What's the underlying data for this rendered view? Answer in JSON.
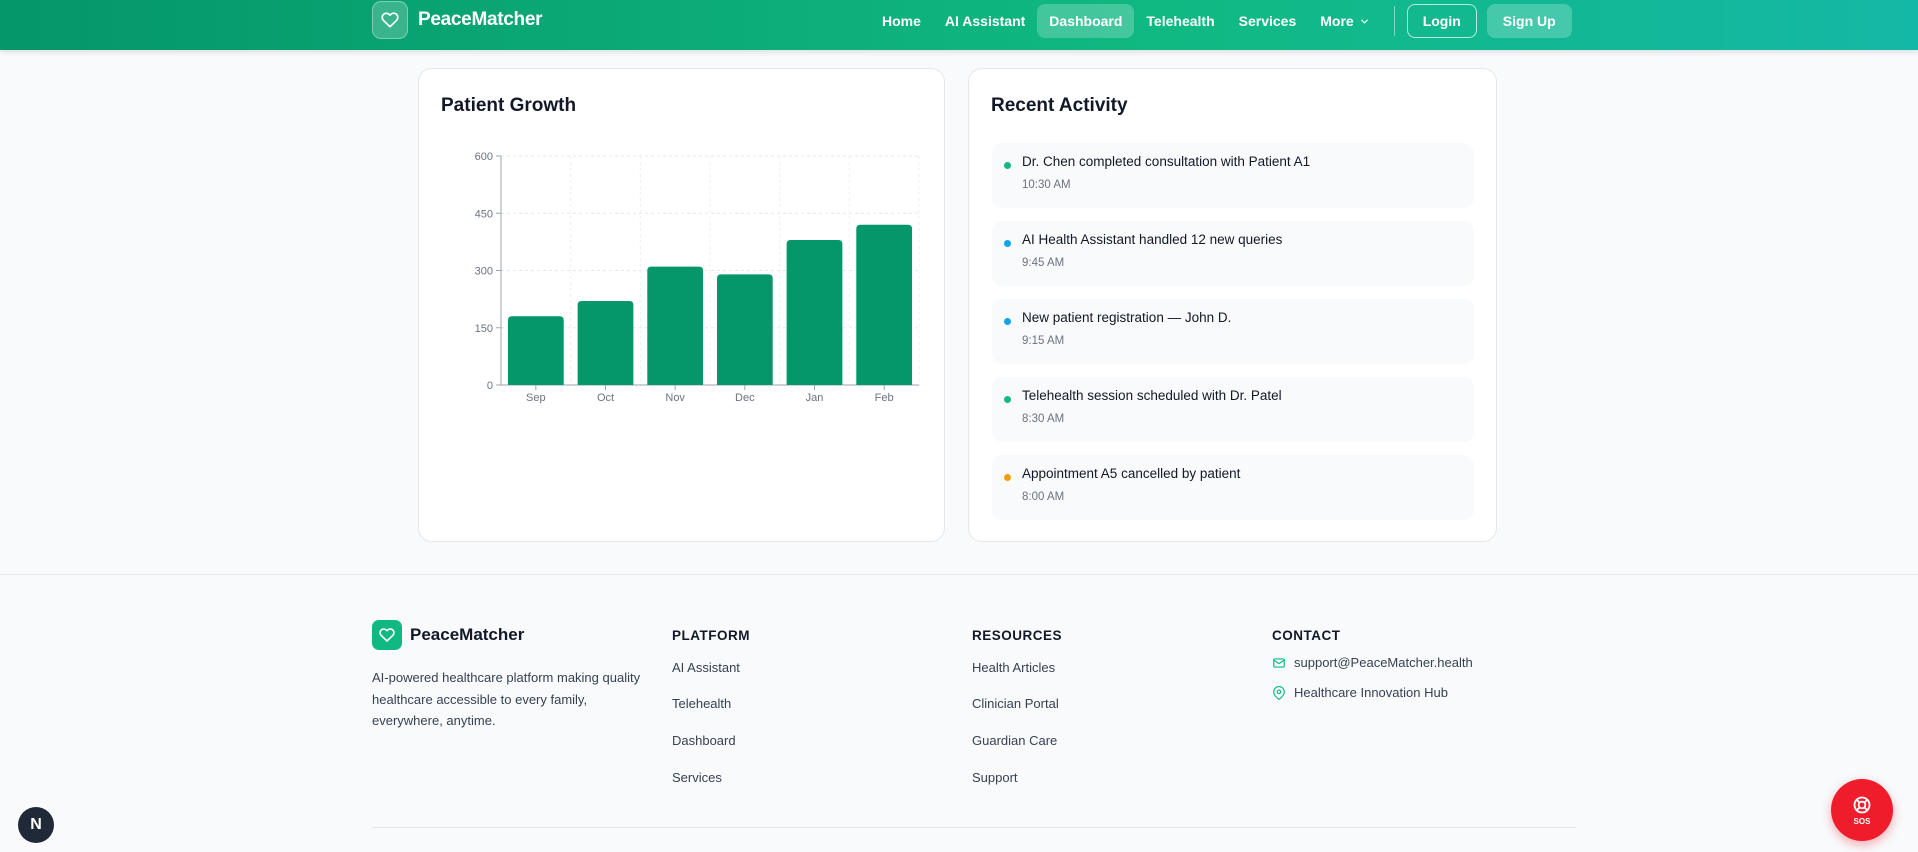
{
  "nav": {
    "brand": "PeaceMatcher",
    "links": [
      "Home",
      "AI Assistant",
      "Dashboard",
      "Telehealth",
      "Services"
    ],
    "active": "Dashboard",
    "more_label": "More",
    "login_label": "Login",
    "signup_label": "Sign Up",
    "icons": {
      "logo": "heart-icon",
      "more": "chevron-down-icon"
    }
  },
  "growth_card": {
    "title": "Patient Growth"
  },
  "chart_data": {
    "type": "bar",
    "title": "Patient Growth",
    "categories": [
      "Sep",
      "Oct",
      "Nov",
      "Dec",
      "Jan",
      "Feb"
    ],
    "values": [
      180,
      220,
      310,
      290,
      380,
      420
    ],
    "yticks": [
      "0",
      "150",
      "300",
      "450",
      "600"
    ],
    "ylim": [
      0,
      600
    ],
    "grid": true,
    "color": "#059669"
  },
  "activity_card": {
    "title": "Recent Activity",
    "items": [
      {
        "text": "Dr. Chen completed consultation with Patient A1",
        "time": "10:30 AM",
        "color": "#10b981"
      },
      {
        "text": "AI Health Assistant handled 12 new queries",
        "time": "9:45 AM",
        "color": "#0ea5e9"
      },
      {
        "text": "New patient registration — John D.",
        "time": "9:15 AM",
        "color": "#0ea5e9"
      },
      {
        "text": "Telehealth session scheduled with Dr. Patel",
        "time": "8:30 AM",
        "color": "#10b981"
      },
      {
        "text": "Appointment A5 cancelled by patient",
        "time": "8:00 AM",
        "color": "#f59e0b"
      }
    ]
  },
  "footer": {
    "brand": "PeaceMatcher",
    "description": "AI-powered healthcare platform making quality healthcare accessible to every family, everywhere, anytime.",
    "platform": {
      "heading": "PLATFORM",
      "links": [
        "AI Assistant",
        "Telehealth",
        "Dashboard",
        "Services"
      ]
    },
    "resources": {
      "heading": "RESOURCES",
      "links": [
        "Health Articles",
        "Clinician Portal",
        "Guardian Care",
        "Support"
      ]
    },
    "contact": {
      "heading": "CONTACT",
      "email": "support@PeaceMatcher.health",
      "location": "Healthcare Innovation Hub",
      "icons": {
        "email": "mail-icon",
        "location": "map-pin-icon"
      }
    }
  },
  "floating": {
    "dev_badge": "N",
    "sos_label": "SOS",
    "sos_icon": "lifebuoy-icon"
  },
  "colors": {
    "brand": "#059669",
    "accent": "#10b981",
    "sos": "#ef1c2c"
  }
}
